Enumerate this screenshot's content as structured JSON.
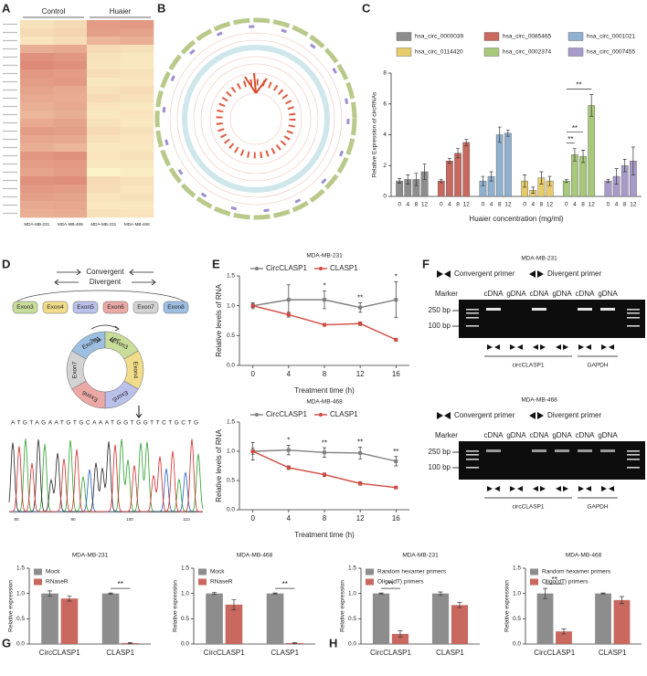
{
  "panel_labels": [
    "A",
    "B",
    "C",
    "D",
    "E",
    "F",
    "G",
    "H"
  ],
  "chart_data": [
    {
      "type": "heatmap",
      "column_groups": [
        "Control",
        "Huaier"
      ],
      "columns": [
        "MDA-MB-231",
        "MDA-MB-468",
        "MDA-MB-231",
        "MDA-MB-468"
      ],
      "colorscale": [
        "#fdf3c8",
        "#d8786b"
      ],
      "z": [
        [
          0.15,
          0.2,
          0.7,
          0.72
        ],
        [
          0.2,
          0.25,
          0.68,
          0.65
        ],
        [
          0.12,
          0.18,
          0.5,
          0.55
        ],
        [
          0.55,
          0.6,
          0.2,
          0.15
        ],
        [
          0.8,
          0.75,
          0.15,
          0.1
        ],
        [
          0.85,
          0.8,
          0.12,
          0.1
        ],
        [
          0.75,
          0.7,
          0.18,
          0.15
        ],
        [
          0.7,
          0.72,
          0.1,
          0.12
        ],
        [
          0.65,
          0.6,
          0.15,
          0.18
        ],
        [
          0.6,
          0.58,
          0.2,
          0.15
        ],
        [
          0.55,
          0.6,
          0.12,
          0.1
        ],
        [
          0.5,
          0.55,
          0.1,
          0.12
        ],
        [
          0.6,
          0.65,
          0.15,
          0.1
        ],
        [
          0.7,
          0.68,
          0.2,
          0.15
        ],
        [
          0.62,
          0.6,
          0.15,
          0.12
        ],
        [
          0.55,
          0.5,
          0.1,
          0.1
        ],
        [
          0.75,
          0.8,
          0.12,
          0.15
        ],
        [
          0.7,
          0.72,
          0.1,
          0.1
        ],
        [
          0.65,
          0.7,
          0.0,
          0.05
        ],
        [
          0.8,
          0.82,
          0.2,
          0.15
        ],
        [
          0.72,
          0.7,
          0.18,
          0.12
        ],
        [
          0.68,
          0.65,
          0.12,
          0.15
        ],
        [
          0.6,
          0.62,
          0.1,
          0.1
        ],
        [
          0.55,
          0.58,
          0.15,
          0.12
        ]
      ]
    },
    {
      "type": "grouped_bar",
      "ylabel": "Relative Expression of circRNAs",
      "xlabel": "Huaier concentration (mg/ml)",
      "categories": [
        "0",
        "4",
        "8",
        "12"
      ],
      "ylim": [
        0,
        8
      ],
      "yticks": [
        0,
        2,
        4,
        6,
        8
      ],
      "series": [
        {
          "name": "hsa_circ_0000039",
          "color": "#8d8d8d",
          "values": [
            1,
            1.1,
            1.1,
            1.6
          ],
          "errors": [
            0.15,
            0.3,
            0.4,
            0.5
          ]
        },
        {
          "name": "hsa_circ_0085465",
          "color": "#c8685f",
          "values": [
            1,
            2.3,
            2.8,
            3.5
          ],
          "errors": [
            0.1,
            0.15,
            0.3,
            0.2
          ]
        },
        {
          "name": "hsa_circ_0001021",
          "color": "#8fb0cf",
          "values": [
            1,
            1.3,
            4,
            4.1
          ],
          "errors": [
            0.3,
            0.3,
            0.5,
            0.2
          ]
        },
        {
          "name": "hsa_circ_0114420",
          "color": "#e8cc6a",
          "values": [
            1,
            0.4,
            1.2,
            1.0
          ],
          "errors": [
            0.4,
            0.2,
            0.4,
            0.3
          ]
        },
        {
          "name": "hsa_circ_0002374",
          "color": "#a8c97a",
          "values": [
            1,
            2.7,
            2.6,
            5.9
          ],
          "errors": [
            0.1,
            0.4,
            0.4,
            0.7
          ]
        },
        {
          "name": "hsa_circ_0007455",
          "color": "#a99bc9",
          "values": [
            1,
            1.3,
            2,
            2.3
          ],
          "errors": [
            0.1,
            0.5,
            0.4,
            0.9
          ]
        }
      ],
      "annotations": [
        {
          "text": "**",
          "series": 4,
          "from": 0,
          "to": 1
        },
        {
          "text": "**",
          "series": 4,
          "from": 0,
          "to": 2
        },
        {
          "text": "**",
          "series": 4,
          "from": 0,
          "to": 3
        }
      ]
    },
    {
      "type": "line",
      "title": "MDA-MB-231",
      "ylabel": "Relative levels of RNA",
      "xlabel": "Treatment time (h)",
      "x": [
        0,
        4,
        8,
        12,
        16
      ],
      "xlim": [
        -1.5,
        17.5
      ],
      "xticks": [
        0,
        4,
        8,
        12,
        16
      ],
      "ylim": [
        0,
        1.5
      ],
      "yticks": [
        {
          "value": 0,
          "label": "0.0"
        },
        {
          "value": 0.5,
          "label": "0.5"
        },
        {
          "value": 1,
          "label": "1.0"
        },
        {
          "value": 1.5,
          "label": "1.5"
        }
      ],
      "series": [
        {
          "name": "CircCLASP1",
          "color": "#7f7f7f",
          "values": [
            1.0,
            1.1,
            1.1,
            0.97,
            1.1
          ],
          "errors": [
            0.05,
            0.25,
            0.15,
            0.08,
            0.3
          ]
        },
        {
          "name": "CLASP1",
          "color": "#d2493f",
          "values": [
            1.0,
            0.85,
            0.68,
            0.7,
            0.43
          ],
          "errors": [
            0.03,
            0.04,
            0.02,
            0.03,
            0.02
          ]
        }
      ],
      "significance": [
        null,
        null,
        "*",
        "**",
        "*"
      ]
    },
    {
      "type": "line",
      "title": "MDA-MB-468",
      "ylabel": "Relative levels of RNA",
      "xlabel": "Treatment time (h)",
      "x": [
        0,
        4,
        8,
        12,
        16
      ],
      "xlim": [
        -1.5,
        17.5
      ],
      "xticks": [
        0,
        4,
        8,
        12,
        16
      ],
      "ylim": [
        0,
        1.5
      ],
      "yticks": [
        {
          "value": 0,
          "label": "0.0"
        },
        {
          "value": 0.5,
          "label": "0.5"
        },
        {
          "value": 1,
          "label": "1.0"
        },
        {
          "value": 1.5,
          "label": "1.5"
        }
      ],
      "series": [
        {
          "name": "CircCLASP1",
          "color": "#7f7f7f",
          "values": [
            1.0,
            1.02,
            0.98,
            0.97,
            0.83
          ],
          "errors": [
            0.05,
            0.08,
            0.08,
            0.1,
            0.08
          ]
        },
        {
          "name": "CLASP1",
          "color": "#d2493f",
          "values": [
            1.0,
            0.72,
            0.6,
            0.45,
            0.38
          ],
          "errors": [
            0.15,
            0.03,
            0.03,
            0.03,
            0.02
          ]
        }
      ],
      "significance": [
        null,
        "*",
        "**",
        "**",
        "**"
      ]
    },
    {
      "type": "bar",
      "title": "MDA-MB-231",
      "ylabel": "Relative expression",
      "categories": [
        "CircCLASP1",
        "CLASP1"
      ],
      "ylim": [
        0,
        1.5
      ],
      "yticks": [
        {
          "value": 0,
          "label": "0.0"
        },
        {
          "value": 0.5,
          "label": "0.5"
        },
        {
          "value": 1,
          "label": "1.0"
        },
        {
          "value": 1.5,
          "label": "1.5"
        }
      ],
      "series": [
        {
          "name": "Mock",
          "color": "#8d8d8d",
          "values": [
            1.0,
            1.0
          ],
          "errors": [
            0.05,
            0.01
          ]
        },
        {
          "name": "RNaseR",
          "color": "#c8685f",
          "values": [
            0.9,
            0.02
          ],
          "errors": [
            0.05,
            0.01
          ]
        }
      ],
      "significance": [
        null,
        "**"
      ]
    },
    {
      "type": "bar",
      "title": "MDA-MB-468",
      "ylabel": "Relative expression",
      "categories": [
        "CircCLASP1",
        "CLASP1"
      ],
      "ylim": [
        0,
        1.5
      ],
      "yticks": [
        {
          "value": 0,
          "label": "0.0"
        },
        {
          "value": 0.5,
          "label": "0.5"
        },
        {
          "value": 1,
          "label": "1.0"
        },
        {
          "value": 1.5,
          "label": "1.5"
        }
      ],
      "series": [
        {
          "name": "Mock",
          "color": "#8d8d8d",
          "values": [
            1.0,
            1.0
          ],
          "errors": [
            0.02,
            0.01
          ]
        },
        {
          "name": "RNaseR",
          "color": "#c8685f",
          "values": [
            0.78,
            0.02
          ],
          "errors": [
            0.1,
            0.01
          ]
        }
      ],
      "significance": [
        null,
        "**"
      ]
    },
    {
      "type": "bar",
      "title": "MDA-MB-231",
      "ylabel": "Relative expression",
      "categories": [
        "CircCLASP1",
        "CLASP1"
      ],
      "ylim": [
        0,
        1.5
      ],
      "yticks": [
        {
          "value": 0,
          "label": "0.0"
        },
        {
          "value": 0.5,
          "label": "0.5"
        },
        {
          "value": 1,
          "label": "1.0"
        },
        {
          "value": 1.5,
          "label": "1.5"
        }
      ],
      "series": [
        {
          "name": "Random hexamer primers",
          "color": "#8d8d8d",
          "values": [
            1.0,
            1.0
          ],
          "errors": [
            0.01,
            0.03
          ]
        },
        {
          "name": "Oligo(dT) primers",
          "color": "#c8685f",
          "values": [
            0.2,
            0.77
          ],
          "errors": [
            0.06,
            0.05
          ]
        }
      ],
      "significance": [
        "**",
        null
      ]
    },
    {
      "type": "bar",
      "title": "MDA-MB-468",
      "ylabel": "Relative expression",
      "categories": [
        "CircCLASP1",
        "CLASP1"
      ],
      "ylim": [
        0,
        1.5
      ],
      "yticks": [
        {
          "value": 0,
          "label": "0.0"
        },
        {
          "value": 0.5,
          "label": "0.5"
        },
        {
          "value": 1,
          "label": "1.0"
        },
        {
          "value": 1.5,
          "label": "1.5"
        }
      ],
      "series": [
        {
          "name": "Random hexamer primers",
          "color": "#8d8d8d",
          "values": [
            1.0,
            1.0
          ],
          "errors": [
            0.1,
            0.01
          ]
        },
        {
          "name": "Oligo(dT) primers",
          "color": "#c8685f",
          "values": [
            0.25,
            0.87
          ],
          "errors": [
            0.05,
            0.07
          ]
        }
      ],
      "significance": [
        "**",
        null
      ]
    }
  ],
  "diagram": {
    "convergent": "Convergent",
    "divergent": "Divergent",
    "exons": [
      "Exon3",
      "Exon4",
      "Exon5",
      "Exon6",
      "Exon7",
      "Exon8"
    ],
    "ring_exons": [
      "Exon8",
      "Exon3",
      "Exon4",
      "Exon5",
      "Exon6",
      "Exon7"
    ],
    "sequence": "ATGTAGAATGTGCAAATGGTGGTTCTGCTG",
    "trace_ticks": [
      "80",
      "90",
      "100",
      "110"
    ]
  },
  "gels": [
    {
      "title": "MDA-MB-231",
      "convergent": "Convergent primer",
      "divergent": "Divergent primer",
      "marker": "Marker",
      "lanes": [
        "cDNA",
        "gDNA",
        "cDNA",
        "gDNA",
        "cDNA",
        "gDNA"
      ],
      "sizes": [
        "250 bp",
        "100 bp"
      ],
      "groups": [
        "circCLASP1",
        "GAPDH"
      ]
    },
    {
      "title": "MDA-MB-468",
      "convergent": "Convergent primer",
      "divergent": "Divergent primer",
      "marker": "Marker",
      "lanes": [
        "cDNA",
        "gDNA",
        "cDNA",
        "gDNA",
        "cDNA",
        "gDNA"
      ],
      "sizes": [
        "250 bp",
        "100 bp"
      ],
      "groups": [
        "circCLASP1",
        "GAPDH"
      ]
    }
  ]
}
